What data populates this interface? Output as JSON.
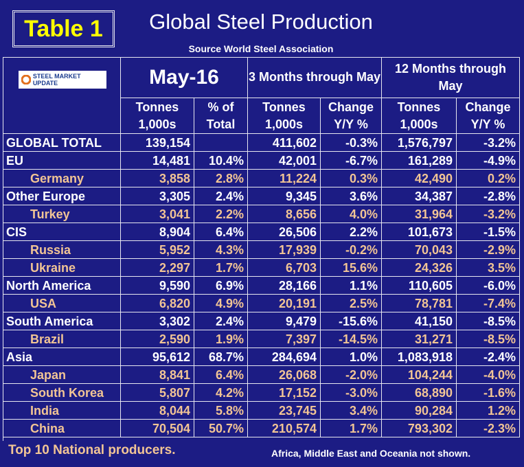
{
  "badge": "Table 1",
  "title": "Global Steel Production",
  "subtitle": "Source World Steel Association",
  "logo": "STEEL MARKET UPDATE",
  "groups": [
    "May-16",
    "3 Months through May",
    "12 Months through May"
  ],
  "columns": [
    "Tonnes 1,000s",
    "% of Total",
    "Tonnes 1,000s",
    "Change Y/Y %",
    "Tonnes 1,000s",
    "Change Y/Y %"
  ],
  "regions": [
    {
      "label": "GLOBAL TOTAL",
      "cells": [
        "139,154",
        null,
        "411,602",
        "-0.3%",
        "1,576,797",
        "-3.2%"
      ],
      "countries": []
    },
    {
      "label": "EU",
      "cells": [
        "14,481",
        "10.4%",
        "42,001",
        "-6.7%",
        "161,289",
        "-4.9%"
      ],
      "countries": [
        {
          "label": "Germany",
          "cells": [
            "3,858",
            "2.8%",
            "11,224",
            "0.3%",
            "42,490",
            "0.2%"
          ]
        }
      ]
    },
    {
      "label": "Other Europe",
      "cells": [
        "3,305",
        "2.4%",
        "9,345",
        "3.6%",
        "34,387",
        "-2.8%"
      ],
      "countries": [
        {
          "label": "Turkey",
          "cells": [
            "3,041",
            "2.2%",
            "8,656",
            "4.0%",
            "31,964",
            "-3.2%"
          ]
        }
      ]
    },
    {
      "label": "CIS",
      "cells": [
        "8,904",
        "6.4%",
        "26,506",
        "2.2%",
        "101,673",
        "-1.5%"
      ],
      "countries": [
        {
          "label": "Russia",
          "cells": [
            "5,952",
            "4.3%",
            "17,939",
            "-0.2%",
            "70,043",
            "-2.9%"
          ]
        },
        {
          "label": "Ukraine",
          "cells": [
            "2,297",
            "1.7%",
            "6,703",
            "15.6%",
            "24,326",
            "3.5%"
          ]
        }
      ]
    },
    {
      "label": "North America",
      "cells": [
        "9,590",
        "6.9%",
        "28,166",
        "1.1%",
        "110,605",
        "-6.0%"
      ],
      "countries": [
        {
          "label": "USA",
          "cells": [
            "6,820",
            "4.9%",
            "20,191",
            "2.5%",
            "78,781",
            "-7.4%"
          ]
        }
      ]
    },
    {
      "label": "South America",
      "cells": [
        "3,302",
        "2.4%",
        "9,479",
        "-15.6%",
        "41,150",
        "-8.5%"
      ],
      "countries": [
        {
          "label": "Brazil",
          "cells": [
            "2,590",
            "1.9%",
            "7,397",
            "-14.5%",
            "31,271",
            "-8.5%"
          ]
        }
      ]
    },
    {
      "label": "Asia",
      "cells": [
        "95,612",
        "68.7%",
        "284,694",
        "1.0%",
        "1,083,918",
        "-2.4%"
      ],
      "countries": [
        {
          "label": "Japan",
          "cells": [
            "8,841",
            "6.4%",
            "26,068",
            "-2.0%",
            "104,244",
            "-4.0%"
          ]
        },
        {
          "label": "South Korea",
          "cells": [
            "5,807",
            "4.2%",
            "17,152",
            "-3.0%",
            "68,890",
            "-1.6%"
          ]
        },
        {
          "label": "India",
          "cells": [
            "8,044",
            "5.8%",
            "23,745",
            "3.4%",
            "90,284",
            "1.2%"
          ]
        },
        {
          "label": "China",
          "cells": [
            "70,504",
            "50.7%",
            "210,574",
            "1.7%",
            "793,302",
            "-2.3%"
          ]
        }
      ]
    }
  ],
  "footer": {
    "left": "Top 10 National producers.",
    "right": "Africa, Middle East and Oceania not shown."
  }
}
